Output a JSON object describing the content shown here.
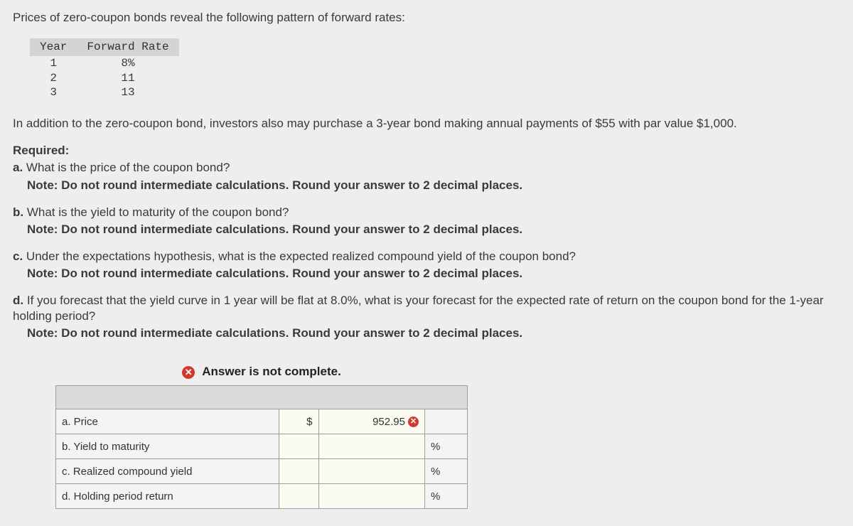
{
  "intro": "Prices of zero-coupon bonds reveal the following pattern of forward rates:",
  "forward_rates": {
    "headers": [
      "Year",
      "Forward Rate"
    ],
    "rows": [
      {
        "year": "1",
        "rate": "8%"
      },
      {
        "year": "2",
        "rate": "11"
      },
      {
        "year": "3",
        "rate": "13"
      }
    ],
    "header_bg": "#d4d4d4",
    "font_family": "Courier New",
    "font_size_pt": 12
  },
  "addition_text": "In addition to the zero-coupon bond, investors also may purchase a 3-year bond making annual payments of $55 with par value $1,000.",
  "required_heading": "Required:",
  "questions": {
    "a": {
      "marker": "a.",
      "text": "What is the price of the coupon bond?",
      "note": "Note: Do not round intermediate calculations. Round your answer to 2 decimal places."
    },
    "b": {
      "marker": "b.",
      "text": "What is the yield to maturity of the coupon bond?",
      "note": "Note: Do not round intermediate calculations. Round your answer to 2 decimal places."
    },
    "c": {
      "marker": "c.",
      "text": "Under the expectations hypothesis, what is the expected realized compound yield of the coupon bond?",
      "note": "Note: Do not round intermediate calculations. Round your answer to 2 decimal places."
    },
    "d": {
      "marker": "d.",
      "text": "If you forecast that the yield curve in 1 year will be flat at 8.0%, what is your forecast for the expected rate of return on the coupon bond for the 1-year holding period?",
      "note": "Note: Do not round intermediate calculations. Round your answer to 2 decimal places."
    }
  },
  "answer_block": {
    "status_text": "Answer is not complete.",
    "status_icon_color": "#d0392e",
    "rows": [
      {
        "label": "a. Price",
        "currency": "$",
        "value": "952.95",
        "wrong": true,
        "unit": ""
      },
      {
        "label": "b. Yield to maturity",
        "currency": "",
        "value": "",
        "wrong": false,
        "unit": "%"
      },
      {
        "label": "c. Realized compound yield",
        "currency": "",
        "value": "",
        "wrong": false,
        "unit": "%"
      },
      {
        "label": "d. Holding period return",
        "currency": "",
        "value": "",
        "wrong": false,
        "unit": "%"
      }
    ],
    "header_bg": "#dadada",
    "input_bg": "#fbfbf2",
    "border_color": "#9e9e9e"
  },
  "page_bg": "#eeeeef",
  "text_color": "#3a3a3a"
}
